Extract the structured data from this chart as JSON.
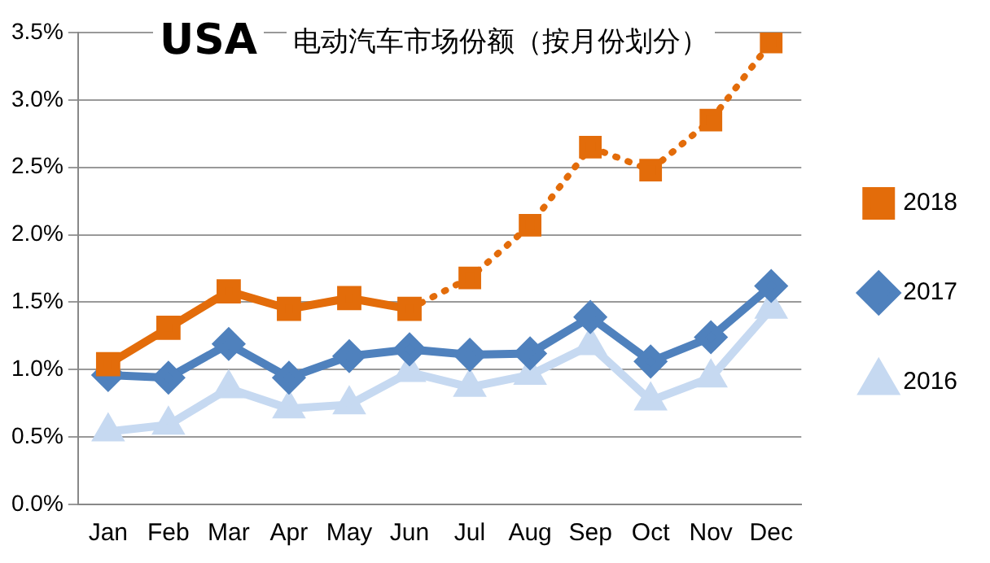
{
  "chart_data": {
    "type": "line",
    "title": "USA",
    "subtitle": "电动汽车市场份额（按月份划分）",
    "categories": [
      "Jan",
      "Feb",
      "Mar",
      "Apr",
      "May",
      "Jun",
      "Jul",
      "Aug",
      "Sep",
      "Oct",
      "Nov",
      "Dec"
    ],
    "series": [
      {
        "name": "2018",
        "color": "#e36c0a",
        "marker": "square",
        "line_style": "solid",
        "values": [
          1.04,
          1.31,
          1.58,
          1.45,
          1.53,
          1.45,
          null,
          null,
          null,
          null,
          null,
          null
        ]
      },
      {
        "color": "#e36c0a",
        "marker": "square",
        "line_style": "dotted",
        "values": [
          null,
          null,
          null,
          null,
          null,
          1.45,
          1.68,
          2.07,
          2.65,
          2.48,
          2.85,
          3.43
        ]
      },
      {
        "name": "2017",
        "color": "#4f81bd",
        "marker": "diamond",
        "line_style": "solid",
        "values": [
          0.96,
          0.94,
          1.19,
          0.94,
          1.1,
          1.15,
          1.11,
          1.12,
          1.39,
          1.06,
          1.24,
          1.62
        ]
      },
      {
        "name": "2016",
        "color": "#c6d9f1",
        "marker": "triangle",
        "line_style": "solid",
        "values": [
          0.54,
          0.59,
          0.86,
          0.71,
          0.74,
          0.98,
          0.87,
          0.96,
          1.18,
          0.77,
          0.94,
          1.45
        ]
      }
    ],
    "ylim": [
      0,
      3.5
    ],
    "yticks": [
      {
        "value": 0,
        "label": "0.0%"
      },
      {
        "value": 0.5,
        "label": "0.5%"
      },
      {
        "value": 1,
        "label": "1.0%"
      },
      {
        "value": 1.5,
        "label": "1.5%"
      },
      {
        "value": 2,
        "label": "2.0%"
      },
      {
        "value": 2.5,
        "label": "2.5%"
      },
      {
        "value": 3,
        "label": "3.0%"
      },
      {
        "value": 3.5,
        "label": "3.5%"
      }
    ],
    "grid": "y",
    "legend": "right"
  }
}
